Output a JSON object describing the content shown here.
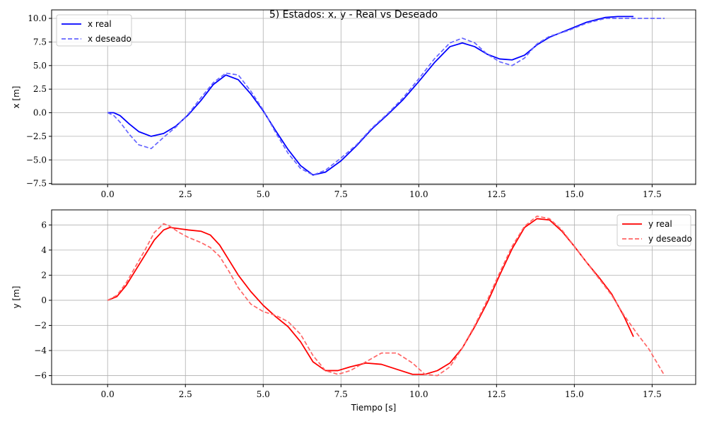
{
  "figure": {
    "title": "5) Estados: x, y - Real vs Deseado"
  },
  "colors": {
    "grid": "#b0b0b0",
    "axis": "#000000"
  },
  "chart_data": [
    {
      "type": "line",
      "xlabel": "",
      "ylabel": "x [m]",
      "xlim": [
        -1.8,
        18.9
      ],
      "ylim": [
        -7.6,
        10.9
      ],
      "xticks": [
        0,
        2.5,
        5,
        7.5,
        10,
        12.5,
        15,
        17.5
      ],
      "xtick_labels": [
        "0.0",
        "2.5",
        "5.0",
        "7.5",
        "10.0",
        "12.5",
        "15.0",
        "17.5"
      ],
      "yticks": [
        -7.5,
        -5,
        -2.5,
        0,
        2.5,
        5,
        7.5,
        10
      ],
      "ytick_labels": [
        "−7.5",
        "−5.0",
        "−2.5",
        "0.0",
        "2.5",
        "5.0",
        "7.5",
        "10.0"
      ],
      "grid": true,
      "legend_position": "upper-left",
      "series": [
        {
          "name": "x real",
          "color": "#0000ff",
          "dash": "solid",
          "x": [
            0,
            0.2,
            0.4,
            0.7,
            1.0,
            1.4,
            1.8,
            2.2,
            2.6,
            3.0,
            3.4,
            3.8,
            4.2,
            4.6,
            5.0,
            5.4,
            5.8,
            6.2,
            6.6,
            7.0,
            7.5,
            8.0,
            8.5,
            9.0,
            9.5,
            10.0,
            10.5,
            11.0,
            11.4,
            11.8,
            12.2,
            12.6,
            13.0,
            13.4,
            13.8,
            14.2,
            14.8,
            15.4,
            16.0,
            16.4,
            16.9
          ],
          "y": [
            0,
            0,
            -0.3,
            -1.2,
            -2.0,
            -2.5,
            -2.2,
            -1.4,
            -0.2,
            1.3,
            3.0,
            4.0,
            3.5,
            2.0,
            0.2,
            -1.9,
            -3.9,
            -5.6,
            -6.6,
            -6.3,
            -5.1,
            -3.5,
            -1.7,
            -0.2,
            1.4,
            3.3,
            5.3,
            7.0,
            7.4,
            7.0,
            6.2,
            5.7,
            5.6,
            6.1,
            7.2,
            8.0,
            8.8,
            9.6,
            10.1,
            10.2,
            10.2
          ]
        },
        {
          "name": "x deseado",
          "color": "#6666ff",
          "dash": "dashed",
          "x": [
            0,
            0.2,
            0.4,
            0.7,
            1.0,
            1.4,
            1.8,
            2.2,
            2.6,
            3.0,
            3.4,
            3.8,
            4.2,
            4.6,
            5.0,
            5.4,
            5.8,
            6.2,
            6.6,
            7.0,
            7.5,
            8.0,
            8.5,
            9.0,
            9.5,
            10.0,
            10.5,
            11.0,
            11.4,
            11.8,
            12.2,
            12.6,
            13.0,
            13.4,
            13.8,
            14.2,
            14.8,
            15.4,
            16.0,
            16.4,
            17.0,
            17.9
          ],
          "y": [
            0,
            -0.3,
            -1.0,
            -2.3,
            -3.4,
            -3.8,
            -2.6,
            -1.5,
            -0.1,
            1.6,
            3.2,
            4.2,
            4.0,
            2.3,
            0.3,
            -2.1,
            -4.3,
            -5.9,
            -6.6,
            -6.1,
            -4.8,
            -3.4,
            -1.6,
            -0.1,
            1.6,
            3.6,
            5.7,
            7.4,
            7.9,
            7.4,
            6.2,
            5.4,
            5.0,
            5.8,
            7.3,
            8.1,
            8.7,
            9.5,
            10.0,
            10.0,
            10.0,
            10.0
          ]
        }
      ]
    },
    {
      "type": "line",
      "xlabel": "Tiempo [s]",
      "ylabel": "y [m]",
      "xlim": [
        -1.8,
        18.9
      ],
      "ylim": [
        -6.7,
        7.2
      ],
      "xticks": [
        0,
        2.5,
        5,
        7.5,
        10,
        12.5,
        15,
        17.5
      ],
      "xtick_labels": [
        "0.0",
        "2.5",
        "5.0",
        "7.5",
        "10.0",
        "12.5",
        "15.0",
        "17.5"
      ],
      "yticks": [
        -6,
        -4,
        -2,
        0,
        2,
        4,
        6
      ],
      "ytick_labels": [
        "−6",
        "−4",
        "−2",
        "0",
        "2",
        "4",
        "6"
      ],
      "grid": true,
      "legend_position": "upper-right",
      "series": [
        {
          "name": "y real",
          "color": "#ff0000",
          "dash": "solid",
          "x": [
            0,
            0.3,
            0.6,
            0.9,
            1.2,
            1.5,
            1.8,
            2.0,
            2.3,
            2.6,
            3.0,
            3.3,
            3.6,
            3.9,
            4.2,
            4.6,
            5.0,
            5.4,
            5.8,
            6.2,
            6.6,
            7.0,
            7.4,
            7.8,
            8.3,
            8.8,
            9.3,
            9.8,
            10.2,
            10.6,
            11.0,
            11.4,
            11.8,
            12.2,
            12.6,
            13.0,
            13.4,
            13.8,
            14.2,
            14.6,
            15.0,
            15.4,
            15.8,
            16.2,
            16.6,
            16.9
          ],
          "y": [
            0,
            0.3,
            1.2,
            2.4,
            3.6,
            4.8,
            5.6,
            5.8,
            5.7,
            5.6,
            5.5,
            5.2,
            4.4,
            3.2,
            2.0,
            0.7,
            -0.4,
            -1.3,
            -2.1,
            -3.3,
            -4.9,
            -5.6,
            -5.6,
            -5.3,
            -5.0,
            -5.1,
            -5.5,
            -5.9,
            -5.9,
            -5.6,
            -5.0,
            -3.8,
            -2.1,
            -0.2,
            2.0,
            4.1,
            5.8,
            6.5,
            6.4,
            5.5,
            4.3,
            3.0,
            1.8,
            0.5,
            -1.3,
            -2.9
          ]
        },
        {
          "name": "y deseado",
          "color": "#ff6666",
          "dash": "dashed",
          "x": [
            0,
            0.3,
            0.6,
            0.9,
            1.2,
            1.5,
            1.8,
            2.0,
            2.3,
            2.6,
            3.0,
            3.3,
            3.6,
            3.9,
            4.2,
            4.6,
            5.0,
            5.4,
            5.8,
            6.2,
            6.6,
            7.0,
            7.4,
            7.8,
            8.3,
            8.8,
            9.3,
            9.8,
            10.2,
            10.6,
            11.0,
            11.4,
            11.8,
            12.2,
            12.6,
            13.0,
            13.4,
            13.8,
            14.2,
            14.6,
            15.0,
            15.4,
            15.8,
            16.2,
            16.6,
            17.0,
            17.4,
            17.9
          ],
          "y": [
            0,
            0.4,
            1.4,
            2.7,
            4.0,
            5.4,
            6.1,
            5.9,
            5.4,
            5.0,
            4.6,
            4.2,
            3.5,
            2.3,
            1.0,
            -0.3,
            -0.9,
            -1.2,
            -1.7,
            -2.7,
            -4.4,
            -5.6,
            -5.9,
            -5.6,
            -4.9,
            -4.2,
            -4.2,
            -5.0,
            -5.9,
            -6.0,
            -5.3,
            -3.8,
            -2.0,
            0,
            2.2,
            4.3,
            5.9,
            6.7,
            6.5,
            5.6,
            4.3,
            3.0,
            1.7,
            0.4,
            -1.2,
            -2.6,
            -3.9,
            -6.0
          ]
        }
      ]
    }
  ]
}
